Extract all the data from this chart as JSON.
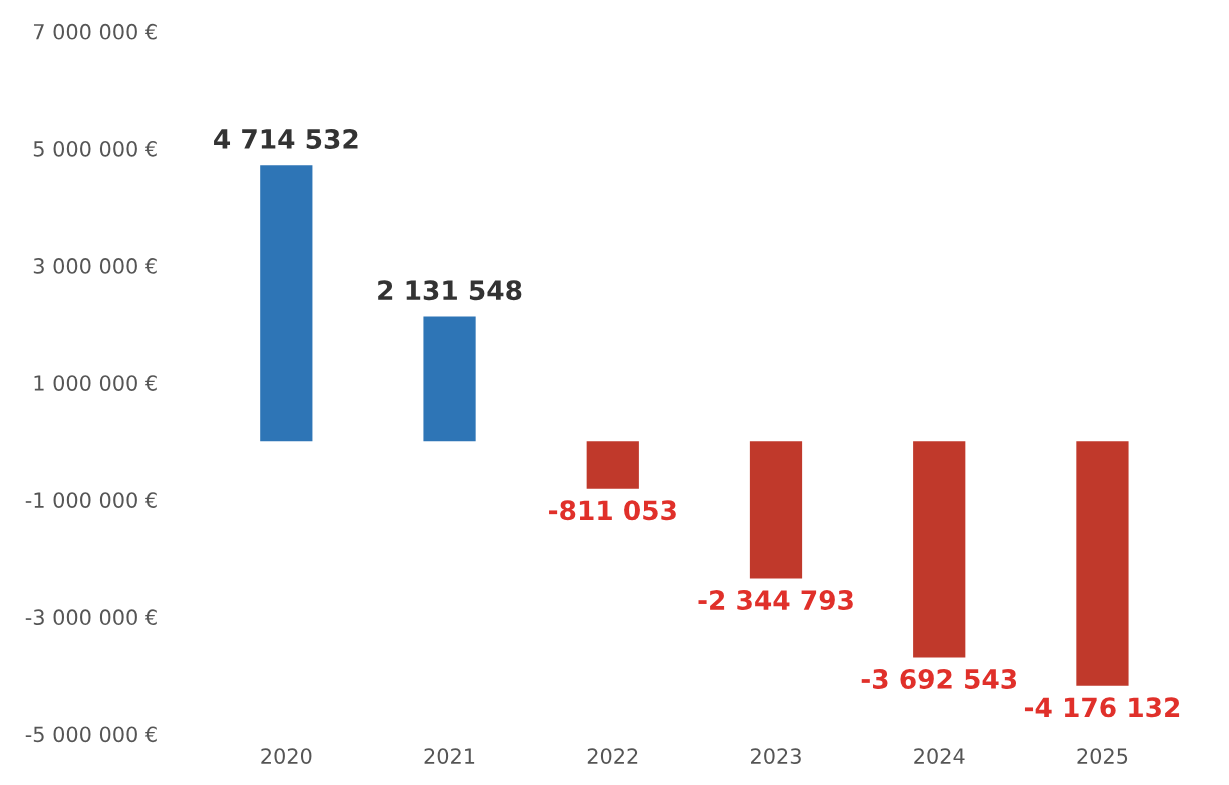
{
  "chart_data": {
    "type": "bar",
    "categories": [
      "2020",
      "2021",
      "2022",
      "2023",
      "2024",
      "2025"
    ],
    "values": [
      4714532,
      2131548,
      -811053,
      -2344793,
      -3692543,
      -4176132
    ],
    "colors": [
      "#2e75b6",
      "#2e75b6",
      "#c0392b",
      "#c0392b",
      "#c0392b",
      "#c0392b"
    ],
    "value_labels": [
      "4 714 532",
      "2 131 548",
      "-811 053",
      "-2 344 793",
      "-3 692 543",
      "-4 176 132"
    ],
    "ylim": [
      -5000000,
      7000000
    ],
    "yticks": [
      {
        "value": 7000000,
        "label": "7 000 000 €"
      },
      {
        "value": 5000000,
        "label": "5 000 000 €"
      },
      {
        "value": 3000000,
        "label": "3 000 000 €"
      },
      {
        "value": 1000000,
        "label": "1 000 000 €"
      },
      {
        "value": -1000000,
        "label": "-1 000 000 €"
      },
      {
        "value": -3000000,
        "label": "-3 000 000 €"
      },
      {
        "value": -5000000,
        "label": "-5 000 000 €"
      }
    ],
    "grid": false
  }
}
